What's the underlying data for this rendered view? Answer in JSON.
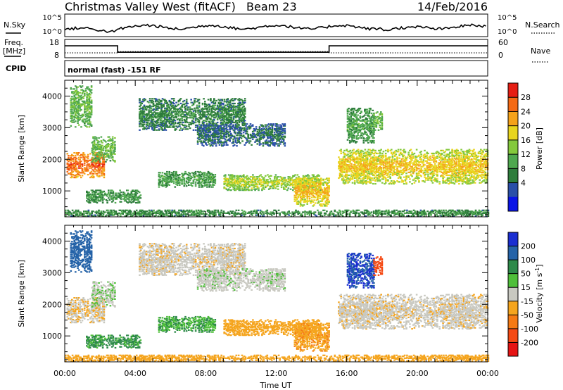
{
  "header": {
    "title": "Christmas Valley West (fitACF)",
    "beam": "Beam 23",
    "date": "14/Feb/2016"
  },
  "top_panels": {
    "nsky_label": "N.Sky",
    "nsearch_label": "N.Search",
    "nsky_ticks": [
      "10^5",
      "10^0"
    ],
    "nsearch_ticks": [
      "10^5",
      "10^0"
    ],
    "freq_label_1": "Freq.",
    "freq_label_2": "[MHz]",
    "freq_ticks": [
      "18",
      "8"
    ],
    "nave_label": "Nave",
    "nave_ticks": [
      "60",
      "0"
    ],
    "cpid_label": "CPID",
    "cpid_text": "normal (fast) -151 RF",
    "freq_steps": [
      {
        "from": 0.0,
        "to": 3.0,
        "value": 14.5
      },
      {
        "from": 3.0,
        "to": 15.0,
        "value": 11.0
      },
      {
        "from": 15.0,
        "to": 24.0,
        "value": 14.5
      }
    ],
    "nave_steps": [
      {
        "from": 0.0,
        "to": 3.0,
        "value": 16
      },
      {
        "from": 3.0,
        "to": 15.0,
        "value": 20
      },
      {
        "from": 15.0,
        "to": 24.0,
        "value": 16
      }
    ]
  },
  "axes": {
    "xlabel": "Time UT",
    "ylabel": "Slant Range [km]",
    "xticks": [
      "00:00",
      "04:00",
      "08:00",
      "12:00",
      "16:00",
      "20:00",
      "00:00"
    ],
    "yticks": [
      "1000",
      "2000",
      "3000",
      "4000"
    ]
  },
  "colorbars": {
    "power": {
      "label": "Power [dB]",
      "ticks": [
        "4",
        "8",
        "12",
        "16",
        "20",
        "24",
        "28"
      ],
      "colors": [
        "#0a14e6",
        "#2a4fa8",
        "#2e7d3c",
        "#4fa84f",
        "#84c93c",
        "#e8d51e",
        "#f5a21a",
        "#f56a14",
        "#e61e14"
      ]
    },
    "velocity": {
      "label": "Velocity [m s",
      "label_sup": "-1",
      "label_end": "]",
      "ticks": [
        "200",
        "100",
        "50",
        "15",
        "-15",
        "-50",
        "-100",
        "-200"
      ],
      "colors": [
        "#1a2ed1",
        "#2563a8",
        "#2e8a4a",
        "#4fbf3a",
        "#c8c8c0",
        "#f5a51e",
        "#f57a14",
        "#f54a14",
        "#e61414"
      ]
    }
  },
  "chart_data": {
    "type": "heatmap",
    "x_range_hours_ut": [
      0,
      24
    ],
    "y_range_km": [
      180,
      4500
    ],
    "panels": [
      "power",
      "velocity"
    ],
    "regions": [
      {
        "t0": 0.1,
        "t1": 2.2,
        "r0": 1400,
        "r1": 2200,
        "power": 26,
        "velocity": -10
      },
      {
        "t0": 1.5,
        "t1": 2.8,
        "r0": 1900,
        "r1": 2700,
        "power": 14,
        "velocity": 10
      },
      {
        "t0": 0.3,
        "t1": 1.5,
        "r0": 3000,
        "r1": 4300,
        "power": 14,
        "velocity": 120
      },
      {
        "t0": 1.2,
        "t1": 4.3,
        "r0": 600,
        "r1": 1000,
        "power": 11,
        "velocity": 40
      },
      {
        "t0": 4.2,
        "t1": 10.2,
        "r0": 2900,
        "r1": 3900,
        "power": 9,
        "velocity": -5
      },
      {
        "t0": 7.5,
        "t1": 12.5,
        "r0": 2400,
        "r1": 3100,
        "power": 7,
        "velocity": 5
      },
      {
        "t0": 5.3,
        "t1": 8.5,
        "r0": 1100,
        "r1": 1600,
        "power": 12,
        "velocity": 30
      },
      {
        "t0": 9.0,
        "t1": 14.5,
        "r0": 1000,
        "r1": 1500,
        "power": 16,
        "velocity": -30
      },
      {
        "t0": 13.0,
        "t1": 15.0,
        "r0": 500,
        "r1": 1400,
        "power": 20,
        "velocity": -40
      },
      {
        "t0": 15.5,
        "t1": 24.0,
        "r0": 1200,
        "r1": 2300,
        "power": 19,
        "velocity": -5
      },
      {
        "t0": 16.0,
        "t1": 17.5,
        "r0": 2500,
        "r1": 3600,
        "power": 12,
        "velocity": 150
      },
      {
        "t0": 17.5,
        "t1": 18.0,
        "r0": 2900,
        "r1": 3500,
        "power": 14,
        "velocity": -150
      },
      {
        "t0": 0.0,
        "t1": 24.0,
        "r0": 180,
        "r1": 380,
        "power": 10,
        "velocity": -30
      }
    ]
  }
}
